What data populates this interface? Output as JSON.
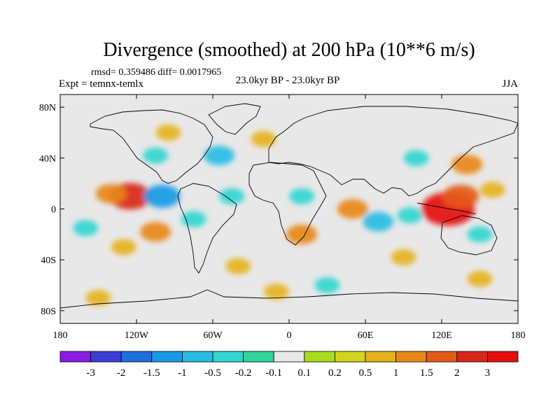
{
  "title": "Divergence (smoothed) at 200 hPa (10**6 m/s)",
  "stats": "rmsd= 0.359486 diff= 0.0017965",
  "experiment": "Expt = temnx-temlx",
  "period": "23.0kyr BP - 23.0kyr BP",
  "season": "JJA",
  "chart_data": {
    "type": "heatmap",
    "variable": "200 hPa divergence difference (smoothed)",
    "units": "10**6 m/s",
    "x_range": [
      -180,
      180
    ],
    "y_range": [
      -90,
      90
    ],
    "x_ticks": [
      {
        "value": -180,
        "label": "180"
      },
      {
        "value": -120,
        "label": "120W"
      },
      {
        "value": -60,
        "label": "60W"
      },
      {
        "value": 0,
        "label": "0"
      },
      {
        "value": 60,
        "label": "60E"
      },
      {
        "value": 120,
        "label": "120E"
      },
      {
        "value": 180,
        "label": "180"
      }
    ],
    "y_ticks": [
      {
        "value": 80,
        "label": "80N"
      },
      {
        "value": 40,
        "label": "40N"
      },
      {
        "value": 0,
        "label": "0"
      },
      {
        "value": -40,
        "label": "40S"
      },
      {
        "value": -80,
        "label": "80S"
      }
    ],
    "colorbar": {
      "levels": [
        "-3",
        "-2",
        "-1.5",
        "-1",
        "-0.5",
        "-0.2",
        "-0.1",
        "0.1",
        "0.2",
        "0.5",
        "1",
        "1.5",
        "2",
        "3"
      ],
      "colors": [
        "#8a1be6",
        "#3c3cd6",
        "#1f6fde",
        "#1a9ae6",
        "#27bde3",
        "#30d6d0",
        "#2fd59a",
        "#e8e8e8",
        "#a8dc1e",
        "#d3d51c",
        "#e6b21b",
        "#e8871a",
        "#e35a17",
        "#d9261a",
        "#e60e0e"
      ]
    },
    "features": [
      {
        "lon": -125,
        "lat": 10,
        "value": 2.0
      },
      {
        "lon": -100,
        "lat": 10,
        "value": -1.5
      },
      {
        "lon": -140,
        "lat": 12,
        "value": 1.0
      },
      {
        "lon": -105,
        "lat": -18,
        "value": 1.0
      },
      {
        "lon": -130,
        "lat": -30,
        "value": 0.5
      },
      {
        "lon": -75,
        "lat": -8,
        "value": -0.5
      },
      {
        "lon": -45,
        "lat": 10,
        "value": -0.5
      },
      {
        "lon": -105,
        "lat": 42,
        "value": -0.5
      },
      {
        "lon": -95,
        "lat": 60,
        "value": 0.5
      },
      {
        "lon": -55,
        "lat": 42,
        "value": -1.0
      },
      {
        "lon": -20,
        "lat": 55,
        "value": 0.5
      },
      {
        "lon": 10,
        "lat": 10,
        "value": -0.5
      },
      {
        "lon": 10,
        "lat": -20,
        "value": 1.0
      },
      {
        "lon": 50,
        "lat": 0,
        "value": 1.0
      },
      {
        "lon": 70,
        "lat": -10,
        "value": -1.0
      },
      {
        "lon": 95,
        "lat": -5,
        "value": -0.5
      },
      {
        "lon": 125,
        "lat": 0,
        "value": 3.0
      },
      {
        "lon": 135,
        "lat": 10,
        "value": 1.5
      },
      {
        "lon": 140,
        "lat": 35,
        "value": 1.0
      },
      {
        "lon": 100,
        "lat": 40,
        "value": -0.5
      },
      {
        "lon": 160,
        "lat": 15,
        "value": 0.5
      },
      {
        "lon": 150,
        "lat": -20,
        "value": -0.5
      },
      {
        "lon": 90,
        "lat": -38,
        "value": 0.5
      },
      {
        "lon": -40,
        "lat": -45,
        "value": 0.5
      },
      {
        "lon": -160,
        "lat": -15,
        "value": -0.5
      },
      {
        "lon": 30,
        "lat": -60,
        "value": -0.5
      },
      {
        "lon": 150,
        "lat": -55,
        "value": 0.5
      },
      {
        "lon": -10,
        "lat": -65,
        "value": 0.5
      },
      {
        "lon": -150,
        "lat": -70,
        "value": 0.5
      }
    ]
  }
}
